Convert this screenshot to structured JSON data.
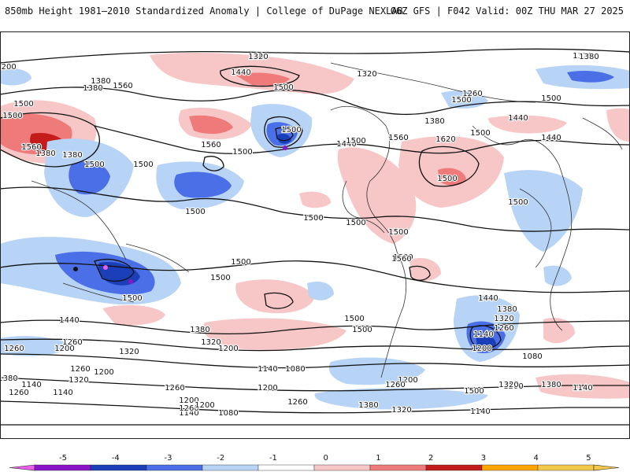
{
  "header": {
    "title_left": "850mb Height 1981–2010 Standardized Anomaly | College of DuPage NEXLAB",
    "title_right": "06Z GFS | F042 Valid: 00Z THU MAR 27 2025"
  },
  "map": {
    "projection": "global cylindrical",
    "contour_labels": [
      "1440",
      "1320",
      "1200",
      "1380",
      "1500",
      "1440",
      "1500",
      "1560",
      "1500",
      "1320",
      "1380",
      "1260",
      "1320",
      "1440",
      "1380",
      "1440",
      "1500",
      "1560",
      "1500",
      "1500",
      "1560",
      "1380",
      "1380",
      "1500",
      "1500",
      "1440",
      "1500",
      "1560",
      "1620",
      "1500",
      "1500",
      "1500",
      "1500",
      "1500",
      "1500",
      "1500",
      "1500",
      "1500",
      "1560",
      "1500",
      "1500",
      "1500",
      "1500",
      "1500",
      "1440",
      "1380",
      "1320",
      "1260",
      "1140",
      "1080",
      "1200",
      "1500",
      "1440",
      "1380",
      "1320",
      "1200",
      "1260",
      "1320",
      "1380",
      "1260",
      "1200",
      "1140",
      "1080",
      "1200",
      "1260",
      "1320",
      "1380",
      "1140",
      "1200",
      "1260",
      "1140",
      "1200",
      "1260",
      "1080",
      "1140",
      "1380",
      "1320",
      "1140",
      "1260",
      "1200",
      "1320",
      "1260",
      "1140",
      "1200",
      "1260",
      "1200",
      "1320",
      "1380"
    ]
  },
  "colorbar": {
    "ticks": [
      "-5",
      "-4",
      "-3",
      "-2",
      "-1",
      "0",
      "1",
      "2",
      "3",
      "4",
      "5"
    ],
    "colors": [
      "#e95ee9",
      "#8a15c8",
      "#1a3fb8",
      "#4a6fe6",
      "#b7d3f5",
      "#ffffff",
      "#f7c6c6",
      "#ef7a7a",
      "#c41b1b",
      "#ffa500",
      "#f2c84b"
    ]
  }
}
